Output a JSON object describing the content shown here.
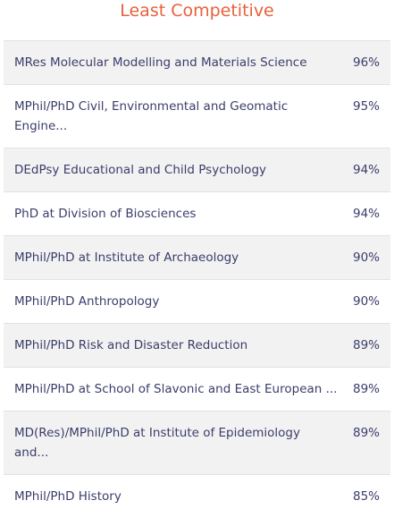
{
  "header": {
    "title": "Least Competitive"
  },
  "table": {
    "rows": [
      [
        "MRes Molecular Modelling and Materials Science",
        "96%"
      ],
      [
        "MPhil/PhD Civil, Environmental and Geomatic Engine...",
        "95%"
      ],
      [
        "DEdPsy Educational and Child Psychology",
        "94%"
      ],
      [
        "PhD at Division of Biosciences",
        "94%"
      ],
      [
        "MPhil/PhD at Institute of Archaeology",
        "90%"
      ],
      [
        "MPhil/PhD Anthropology",
        "90%"
      ],
      [
        "MPhil/PhD Risk and Disaster Reduction",
        "89%"
      ],
      [
        "MPhil/PhD at School of Slavonic and East European ...",
        "89%"
      ],
      [
        "MD(Res)/MPhil/PhD at Institute of Epidemiology and...",
        "89%"
      ],
      [
        "MPhil/PhD History",
        "85%"
      ]
    ]
  }
}
